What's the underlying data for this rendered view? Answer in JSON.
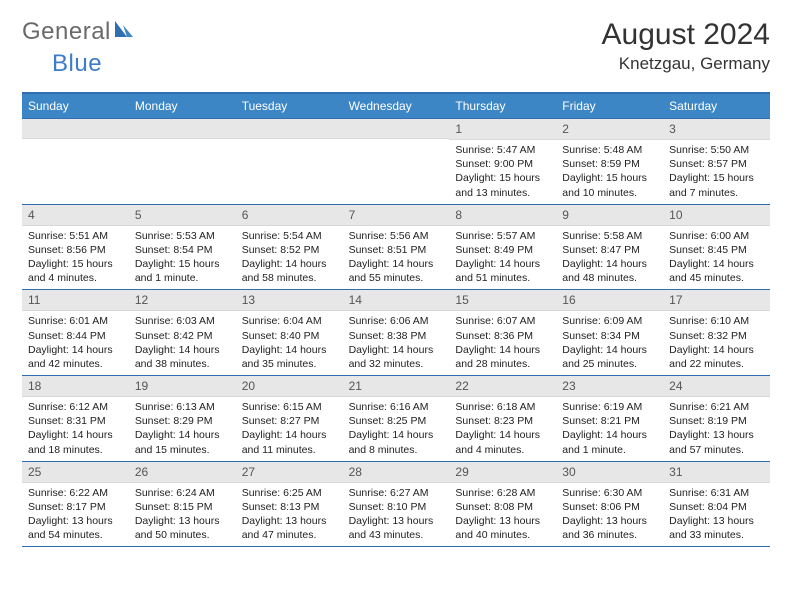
{
  "logo": {
    "text1": "General",
    "text2": "Blue"
  },
  "title": "August 2024",
  "location": "Knetzgau, Germany",
  "colors": {
    "header_bg": "#3d86c6",
    "border": "#2f6fb0",
    "daynum_bg": "#e7e7e7",
    "logo_gray": "#6a6a6a",
    "logo_blue": "#3d7cc9"
  },
  "day_labels": [
    "Sunday",
    "Monday",
    "Tuesday",
    "Wednesday",
    "Thursday",
    "Friday",
    "Saturday"
  ],
  "weeks": [
    [
      {
        "n": "",
        "sr": "",
        "ss": "",
        "dl": ""
      },
      {
        "n": "",
        "sr": "",
        "ss": "",
        "dl": ""
      },
      {
        "n": "",
        "sr": "",
        "ss": "",
        "dl": ""
      },
      {
        "n": "",
        "sr": "",
        "ss": "",
        "dl": ""
      },
      {
        "n": "1",
        "sr": "Sunrise: 5:47 AM",
        "ss": "Sunset: 9:00 PM",
        "dl": "Daylight: 15 hours and 13 minutes."
      },
      {
        "n": "2",
        "sr": "Sunrise: 5:48 AM",
        "ss": "Sunset: 8:59 PM",
        "dl": "Daylight: 15 hours and 10 minutes."
      },
      {
        "n": "3",
        "sr": "Sunrise: 5:50 AM",
        "ss": "Sunset: 8:57 PM",
        "dl": "Daylight: 15 hours and 7 minutes."
      }
    ],
    [
      {
        "n": "4",
        "sr": "Sunrise: 5:51 AM",
        "ss": "Sunset: 8:56 PM",
        "dl": "Daylight: 15 hours and 4 minutes."
      },
      {
        "n": "5",
        "sr": "Sunrise: 5:53 AM",
        "ss": "Sunset: 8:54 PM",
        "dl": "Daylight: 15 hours and 1 minute."
      },
      {
        "n": "6",
        "sr": "Sunrise: 5:54 AM",
        "ss": "Sunset: 8:52 PM",
        "dl": "Daylight: 14 hours and 58 minutes."
      },
      {
        "n": "7",
        "sr": "Sunrise: 5:56 AM",
        "ss": "Sunset: 8:51 PM",
        "dl": "Daylight: 14 hours and 55 minutes."
      },
      {
        "n": "8",
        "sr": "Sunrise: 5:57 AM",
        "ss": "Sunset: 8:49 PM",
        "dl": "Daylight: 14 hours and 51 minutes."
      },
      {
        "n": "9",
        "sr": "Sunrise: 5:58 AM",
        "ss": "Sunset: 8:47 PM",
        "dl": "Daylight: 14 hours and 48 minutes."
      },
      {
        "n": "10",
        "sr": "Sunrise: 6:00 AM",
        "ss": "Sunset: 8:45 PM",
        "dl": "Daylight: 14 hours and 45 minutes."
      }
    ],
    [
      {
        "n": "11",
        "sr": "Sunrise: 6:01 AM",
        "ss": "Sunset: 8:44 PM",
        "dl": "Daylight: 14 hours and 42 minutes."
      },
      {
        "n": "12",
        "sr": "Sunrise: 6:03 AM",
        "ss": "Sunset: 8:42 PM",
        "dl": "Daylight: 14 hours and 38 minutes."
      },
      {
        "n": "13",
        "sr": "Sunrise: 6:04 AM",
        "ss": "Sunset: 8:40 PM",
        "dl": "Daylight: 14 hours and 35 minutes."
      },
      {
        "n": "14",
        "sr": "Sunrise: 6:06 AM",
        "ss": "Sunset: 8:38 PM",
        "dl": "Daylight: 14 hours and 32 minutes."
      },
      {
        "n": "15",
        "sr": "Sunrise: 6:07 AM",
        "ss": "Sunset: 8:36 PM",
        "dl": "Daylight: 14 hours and 28 minutes."
      },
      {
        "n": "16",
        "sr": "Sunrise: 6:09 AM",
        "ss": "Sunset: 8:34 PM",
        "dl": "Daylight: 14 hours and 25 minutes."
      },
      {
        "n": "17",
        "sr": "Sunrise: 6:10 AM",
        "ss": "Sunset: 8:32 PM",
        "dl": "Daylight: 14 hours and 22 minutes."
      }
    ],
    [
      {
        "n": "18",
        "sr": "Sunrise: 6:12 AM",
        "ss": "Sunset: 8:31 PM",
        "dl": "Daylight: 14 hours and 18 minutes."
      },
      {
        "n": "19",
        "sr": "Sunrise: 6:13 AM",
        "ss": "Sunset: 8:29 PM",
        "dl": "Daylight: 14 hours and 15 minutes."
      },
      {
        "n": "20",
        "sr": "Sunrise: 6:15 AM",
        "ss": "Sunset: 8:27 PM",
        "dl": "Daylight: 14 hours and 11 minutes."
      },
      {
        "n": "21",
        "sr": "Sunrise: 6:16 AM",
        "ss": "Sunset: 8:25 PM",
        "dl": "Daylight: 14 hours and 8 minutes."
      },
      {
        "n": "22",
        "sr": "Sunrise: 6:18 AM",
        "ss": "Sunset: 8:23 PM",
        "dl": "Daylight: 14 hours and 4 minutes."
      },
      {
        "n": "23",
        "sr": "Sunrise: 6:19 AM",
        "ss": "Sunset: 8:21 PM",
        "dl": "Daylight: 14 hours and 1 minute."
      },
      {
        "n": "24",
        "sr": "Sunrise: 6:21 AM",
        "ss": "Sunset: 8:19 PM",
        "dl": "Daylight: 13 hours and 57 minutes."
      }
    ],
    [
      {
        "n": "25",
        "sr": "Sunrise: 6:22 AM",
        "ss": "Sunset: 8:17 PM",
        "dl": "Daylight: 13 hours and 54 minutes."
      },
      {
        "n": "26",
        "sr": "Sunrise: 6:24 AM",
        "ss": "Sunset: 8:15 PM",
        "dl": "Daylight: 13 hours and 50 minutes."
      },
      {
        "n": "27",
        "sr": "Sunrise: 6:25 AM",
        "ss": "Sunset: 8:13 PM",
        "dl": "Daylight: 13 hours and 47 minutes."
      },
      {
        "n": "28",
        "sr": "Sunrise: 6:27 AM",
        "ss": "Sunset: 8:10 PM",
        "dl": "Daylight: 13 hours and 43 minutes."
      },
      {
        "n": "29",
        "sr": "Sunrise: 6:28 AM",
        "ss": "Sunset: 8:08 PM",
        "dl": "Daylight: 13 hours and 40 minutes."
      },
      {
        "n": "30",
        "sr": "Sunrise: 6:30 AM",
        "ss": "Sunset: 8:06 PM",
        "dl": "Daylight: 13 hours and 36 minutes."
      },
      {
        "n": "31",
        "sr": "Sunrise: 6:31 AM",
        "ss": "Sunset: 8:04 PM",
        "dl": "Daylight: 13 hours and 33 minutes."
      }
    ]
  ]
}
